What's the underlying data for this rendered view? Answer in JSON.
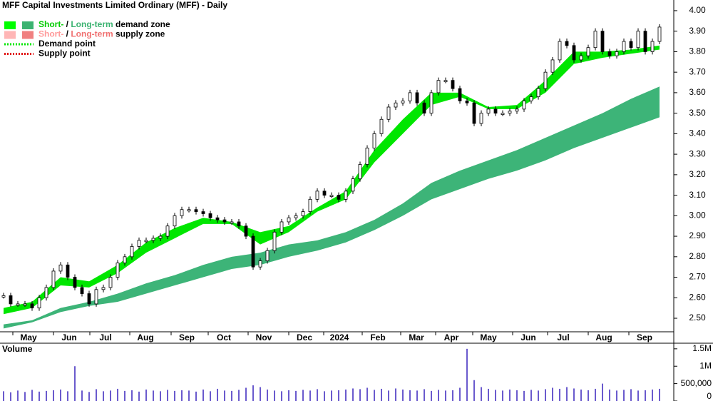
{
  "chart_data": {
    "type": "candlestick",
    "title": "MFF Capital Investments Limited Ordinary (MFF) - Daily",
    "legend": [
      {
        "style": "box",
        "swatches": [
          "#00ff00",
          "#3cb371"
        ],
        "parts": [
          {
            "text": "Short-",
            "color": "#00cc00"
          },
          {
            "text": " / ",
            "color": "#000000"
          },
          {
            "text": "Long-term",
            "color": "#3cb371"
          },
          {
            "text": " demand zone",
            "color": "#000000"
          }
        ]
      },
      {
        "style": "box",
        "swatches": [
          "#ffb6b6",
          "#f08080"
        ],
        "parts": [
          {
            "text": "Short-",
            "color": "#ff9999"
          },
          {
            "text": " / ",
            "color": "#000000"
          },
          {
            "text": "Long-term",
            "color": "#f07070"
          },
          {
            "text": " supply zone",
            "color": "#000000"
          }
        ]
      },
      {
        "style": "dotted",
        "swatches": [
          "#00e600"
        ],
        "parts": [
          {
            "text": "Demand point",
            "color": "#000000"
          }
        ]
      },
      {
        "style": "dotted",
        "swatches": [
          "#e00000"
        ],
        "parts": [
          {
            "text": "Supply point",
            "color": "#000000"
          }
        ]
      }
    ],
    "xlim": [
      -0.5,
      94
    ],
    "xticks": [
      {
        "value": 3.5,
        "label": "May"
      },
      {
        "value": 9.2,
        "label": "Jun"
      },
      {
        "value": 14.3,
        "label": "Jul"
      },
      {
        "value": 19.9,
        "label": "Aug"
      },
      {
        "value": 25.7,
        "label": "Sep"
      },
      {
        "value": 30.9,
        "label": "Oct"
      },
      {
        "value": 36.5,
        "label": "Nov"
      },
      {
        "value": 42.2,
        "label": "Dec"
      },
      {
        "value": 47.1,
        "label": "2024"
      },
      {
        "value": 52.5,
        "label": "Feb"
      },
      {
        "value": 57.9,
        "label": "Mar"
      },
      {
        "value": 62.8,
        "label": "Apr"
      },
      {
        "value": 68,
        "label": "May"
      },
      {
        "value": 73.6,
        "label": "Jun"
      },
      {
        "value": 78.5,
        "label": "Jul"
      },
      {
        "value": 84.2,
        "label": "Aug"
      },
      {
        "value": 89.9,
        "label": "Sep"
      }
    ],
    "ylim": [
      2.434,
      4.052
    ],
    "yticks": [
      {
        "value": 2.5,
        "label": "2.50"
      },
      {
        "value": 2.6,
        "label": "2.60"
      },
      {
        "value": 2.7,
        "label": "2.70"
      },
      {
        "value": 2.8,
        "label": "2.80"
      },
      {
        "value": 2.9,
        "label": "2.90"
      },
      {
        "value": 3.0,
        "label": "3.00"
      },
      {
        "value": 3.1,
        "label": "3.10"
      },
      {
        "value": 3.2,
        "label": "3.20"
      },
      {
        "value": 3.3,
        "label": "3.30"
      },
      {
        "value": 3.4,
        "label": "3.40"
      },
      {
        "value": 3.5,
        "label": "3.50"
      },
      {
        "value": 3.6,
        "label": "3.60"
      },
      {
        "value": 3.7,
        "label": "3.70"
      },
      {
        "value": 3.8,
        "label": "3.80"
      },
      {
        "value": 3.9,
        "label": "3.90"
      },
      {
        "value": 4.0,
        "label": "4.00"
      }
    ],
    "close": [
      2.61,
      2.57,
      2.57,
      2.57,
      2.55,
      2.6,
      2.65,
      2.73,
      2.76,
      2.7,
      2.65,
      2.62,
      2.57,
      2.64,
      2.65,
      2.7,
      2.77,
      2.8,
      2.85,
      2.88,
      2.88,
      2.89,
      2.9,
      2.95,
      3.0,
      3.03,
      3.03,
      3.02,
      3.01,
      2.99,
      2.98,
      2.97,
      2.97,
      2.95,
      2.9,
      2.75,
      2.78,
      2.83,
      2.92,
      2.97,
      2.99,
      3.0,
      3.02,
      3.08,
      3.12,
      3.1,
      3.1,
      3.08,
      3.12,
      3.18,
      3.25,
      3.33,
      3.4,
      3.47,
      3.53,
      3.55,
      3.56,
      3.6,
      3.55,
      3.5,
      3.6,
      3.66,
      3.66,
      3.62,
      3.56,
      3.55,
      3.45,
      3.5,
      3.52,
      3.5,
      3.5,
      3.51,
      3.52,
      3.56,
      3.58,
      3.62,
      3.7,
      3.76,
      3.85,
      3.83,
      3.76,
      3.78,
      3.82,
      3.9,
      3.8,
      3.78,
      3.8,
      3.85,
      3.82,
      3.9,
      3.8,
      3.85,
      3.92
    ],
    "bands": [
      {
        "color": "#00e600",
        "x": [
          0,
          4,
          8,
          12,
          16,
          20,
          24,
          28,
          32,
          36,
          40,
          44,
          48,
          52,
          56,
          60,
          64,
          68,
          72,
          76,
          80,
          84,
          88,
          92
        ],
        "lower": [
          2.52,
          2.55,
          2.66,
          2.65,
          2.72,
          2.82,
          2.89,
          2.96,
          2.96,
          2.86,
          2.92,
          3.02,
          3.08,
          3.26,
          3.4,
          3.54,
          3.58,
          3.52,
          3.52,
          3.6,
          3.74,
          3.77,
          3.79,
          3.81
        ],
        "upper": [
          2.55,
          2.58,
          2.7,
          2.68,
          2.76,
          2.87,
          2.94,
          2.99,
          2.97,
          2.92,
          2.95,
          3.04,
          3.12,
          3.32,
          3.47,
          3.6,
          3.6,
          3.53,
          3.54,
          3.66,
          3.8,
          3.8,
          3.81,
          3.83
        ]
      },
      {
        "color": "#3db478",
        "x": [
          0,
          4,
          8,
          12,
          16,
          20,
          24,
          28,
          32,
          36,
          40,
          44,
          48,
          52,
          56,
          60,
          64,
          68,
          72,
          76,
          80,
          84,
          88,
          92
        ],
        "lower": [
          2.45,
          2.48,
          2.53,
          2.56,
          2.58,
          2.62,
          2.66,
          2.7,
          2.74,
          2.76,
          2.8,
          2.83,
          2.87,
          2.93,
          3.0,
          3.08,
          3.13,
          3.18,
          3.22,
          3.27,
          3.33,
          3.38,
          3.43,
          3.48
        ],
        "upper": [
          2.47,
          2.49,
          2.55,
          2.58,
          2.62,
          2.67,
          2.71,
          2.76,
          2.8,
          2.82,
          2.86,
          2.88,
          2.92,
          2.98,
          3.06,
          3.16,
          3.22,
          3.27,
          3.32,
          3.38,
          3.44,
          3.5,
          3.57,
          3.63
        ]
      }
    ],
    "volume": {
      "label": "Volume",
      "color": "#6a5acd",
      "ylim": [
        0,
        1620000
      ],
      "yticks": [
        0,
        {
          "value": 500000,
          "label": "500,000"
        },
        {
          "value": 1000000,
          "label": "1M"
        },
        {
          "value": 1500000,
          "label": "1.5M"
        }
      ],
      "values": [
        280000,
        250000,
        300000,
        260000,
        320000,
        270000,
        290000,
        310000,
        330000,
        280000,
        1000000,
        300000,
        260000,
        340000,
        280000,
        300000,
        350000,
        290000,
        310000,
        270000,
        330000,
        300000,
        280000,
        320000,
        290000,
        310000,
        300000,
        270000,
        330000,
        280000,
        350000,
        300000,
        290000,
        320000,
        380000,
        450000,
        400000,
        330000,
        300000,
        280000,
        310000,
        290000,
        320000,
        300000,
        340000,
        280000,
        300000,
        310000,
        330000,
        360000,
        340000,
        380000,
        320000,
        350000,
        300000,
        360000,
        330000,
        310000,
        300000,
        340000,
        290000,
        320000,
        300000,
        310000,
        380000,
        1500000,
        600000,
        400000,
        350000,
        320000,
        300000,
        330000,
        310000,
        290000,
        320000,
        300000,
        340000,
        380000,
        350000,
        400000,
        360000,
        330000,
        310000,
        350000,
        500000,
        330000,
        300000,
        320000,
        340000,
        300000,
        310000,
        330000,
        350000
      ]
    }
  }
}
